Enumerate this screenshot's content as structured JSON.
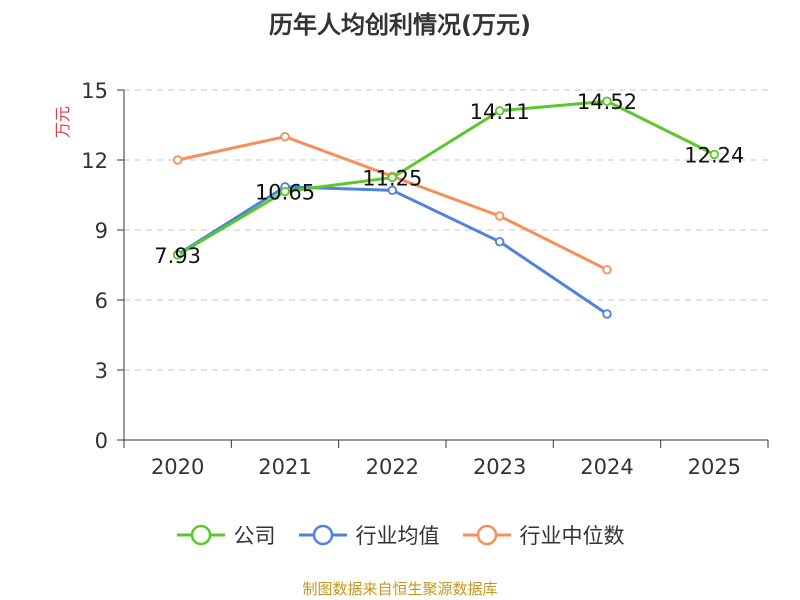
{
  "chart_data": {
    "type": "line",
    "title": "历年人均创利情况(万元)",
    "ylabel": "万元",
    "xlabel": "",
    "categories": [
      "2020",
      "2021",
      "2022",
      "2023",
      "2024",
      "2025"
    ],
    "yticks": [
      "0",
      "3",
      "6",
      "9",
      "12",
      "15"
    ],
    "ylim": [
      0,
      15
    ],
    "grid": true,
    "legend_position": "bottom",
    "series": [
      {
        "name": "公司",
        "color": "#5ac82b",
        "values": [
          7.93,
          10.65,
          11.25,
          14.11,
          14.52,
          12.24
        ],
        "labels": [
          "7.93",
          "10.65",
          "11.25",
          "14.11",
          "14.52",
          "12.24"
        ]
      },
      {
        "name": "行业均值",
        "color": "#4e82dd",
        "values": [
          7.95,
          10.85,
          10.7,
          8.5,
          5.4,
          null
        ],
        "labels": []
      },
      {
        "name": "行业中位数",
        "color": "#f5905b",
        "values": [
          12.0,
          13.0,
          11.3,
          9.6,
          7.3,
          null
        ],
        "labels": []
      }
    ],
    "footer": "制图数据来自恒生聚源数据库",
    "footer_color": "#c8961e",
    "ylabel_color": "#e03c3c"
  }
}
